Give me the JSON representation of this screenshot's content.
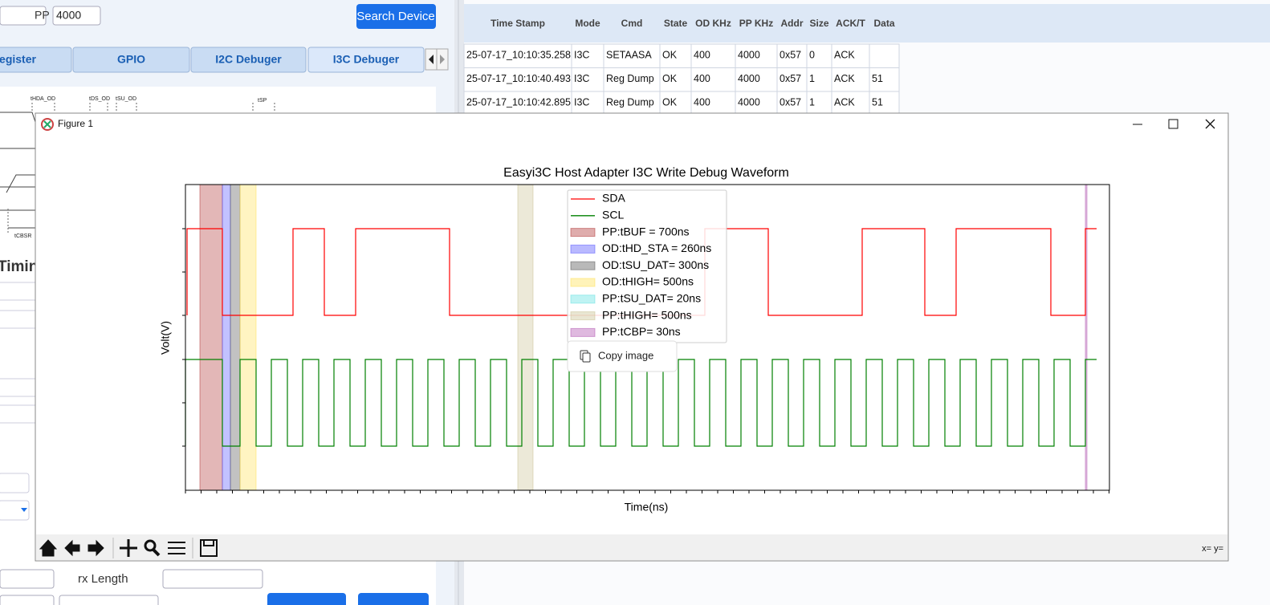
{
  "app": {
    "pp_label": "PP",
    "pp_value": "4000",
    "search_button": "Search Device",
    "tabs": [
      "egister",
      "GPIO",
      "I2C Debuger",
      "I3C Debuger"
    ],
    "timing_labels": [
      "tHDA_OD",
      "tDS_OD",
      "tSU_OD",
      "tSP",
      "tCBSR"
    ],
    "section_heading": "Timin",
    "rx_label": "rx Length"
  },
  "log_table": {
    "headers": [
      "Time Stamp",
      "Mode",
      "Cmd",
      "State",
      "OD KHz",
      "PP KHz",
      "Addr",
      "Size",
      "ACK/T",
      "Data"
    ],
    "rows": [
      [
        "25-07-17_10:10:35.258",
        "I3C",
        "SETAASA",
        "OK",
        "400",
        "4000",
        "0x57",
        "0",
        "ACK"
      ],
      [
        "25-07-17_10:10:40.493",
        "I3C",
        "Reg Dump",
        "OK",
        "400",
        "4000",
        "0x57",
        "1",
        "ACK",
        "51"
      ],
      [
        "25-07-17_10:10:42.895",
        "I3C",
        "Reg Dump",
        "OK",
        "400",
        "4000",
        "0x57",
        "1",
        "ACK",
        "51"
      ]
    ]
  },
  "figure": {
    "window_title": "Figure 1",
    "title": "Easyi3C Host Adapter I3C Write Debug Waveform",
    "xlabel": "Time(ns)",
    "ylabel": "Volt(V)",
    "legend": [
      {
        "label": "SDA",
        "color": "#ff0000"
      },
      {
        "label": "SCL",
        "color": "#008000"
      },
      {
        "label": "PP:tBUF = 700ns",
        "color": "#b03030"
      },
      {
        "label": "OD:tHD_STA = 260ns",
        "color": "#5050ff"
      },
      {
        "label": "OD:tSU_DAT= 300ns",
        "color": "#505050"
      },
      {
        "label": "OD:tHIGH= 500ns",
        "color": "#ffe050"
      },
      {
        "label": "PP:tSU_DAT= 20ns",
        "color": "#60e0e0"
      },
      {
        "label": "PP:tHIGH= 500ns",
        "color": "#c8c090"
      },
      {
        "label": "PP:tCBP= 30ns",
        "color": "#b050b0"
      }
    ],
    "context_menu": "Copy image",
    "status": "x= y="
  }
}
